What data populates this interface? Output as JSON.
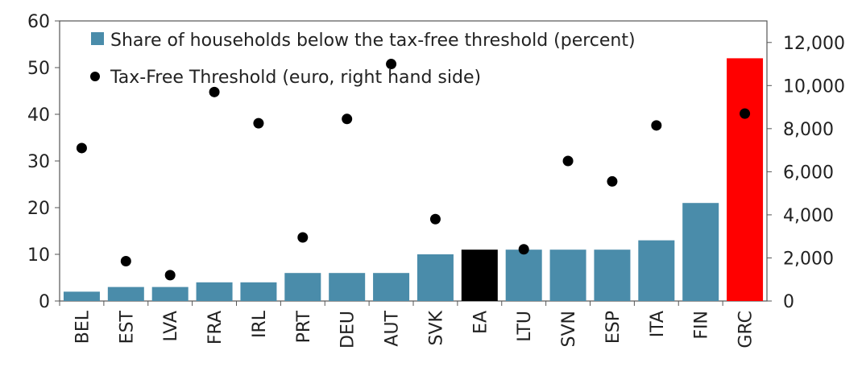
{
  "chart_data": {
    "type": "bar",
    "categories": [
      "BEL",
      "EST",
      "LVA",
      "FRA",
      "IRL",
      "PRT",
      "DEU",
      "AUT",
      "SVK",
      "EA",
      "LTU",
      "SVN",
      "ESP",
      "ITA",
      "FIN",
      "GRC"
    ],
    "series": [
      {
        "name": "Share of households below the tax-free threshold (percent)",
        "type": "bar",
        "axis": "left",
        "values": [
          2,
          3,
          3,
          4,
          4,
          6,
          6,
          6,
          10,
          11,
          11,
          11,
          11,
          13,
          21,
          52
        ],
        "color": "#4a8caa",
        "highlight_colors": {
          "EA": "#000000",
          "GRC": "#ff0000"
        }
      },
      {
        "name": "Tax-Free Threshold (euro, right hand side)",
        "type": "scatter",
        "axis": "right",
        "values": [
          7100,
          1850,
          1200,
          9700,
          8250,
          2950,
          8450,
          11000,
          3800,
          null,
          2400,
          6500,
          5550,
          8150,
          null,
          8700
        ],
        "color": "#000000"
      }
    ],
    "y_left": {
      "range": [
        0,
        60
      ],
      "ticks": [
        "0",
        "10",
        "20",
        "30",
        "40",
        "50",
        "60"
      ]
    },
    "y_right": {
      "range": [
        0,
        13000
      ],
      "ticks": [
        "0",
        "2,000",
        "4,000",
        "6,000",
        "8,000",
        "10,000",
        "12,000"
      ]
    },
    "legend": "top-left, inside plot",
    "grid": false
  }
}
